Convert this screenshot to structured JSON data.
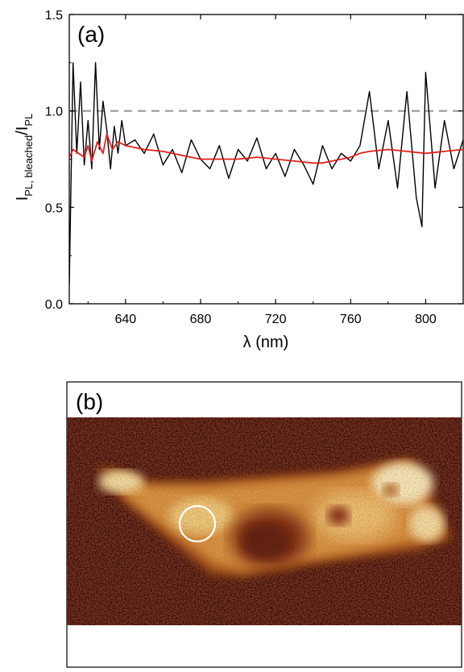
{
  "panel_a": {
    "label": "(a)",
    "chart_data": {
      "type": "line",
      "title": "",
      "xlabel": "λ (nm)",
      "ylabel_main": "I",
      "ylabel_sub1": "PL, bleached",
      "ylabel_slash": "/I",
      "ylabel_sub2": "PL",
      "xlim": [
        610,
        820
      ],
      "ylim": [
        0.0,
        1.5
      ],
      "x_ticks": [
        640,
        680,
        720,
        760,
        800
      ],
      "x_tick_labels": [
        "640",
        "680",
        "720",
        "760",
        "800"
      ],
      "y_ticks": [
        0.0,
        0.5,
        1.0,
        1.5
      ],
      "y_tick_labels": [
        "0.0",
        "0.5",
        "1.0",
        "1.5"
      ],
      "grid": false,
      "reference_line": {
        "y": 1.0,
        "style": "dashed",
        "color": "#9a9a9a"
      },
      "series": [
        {
          "color": "#000000",
          "kind": "raw",
          "x": [
            610,
            612,
            614,
            616,
            618,
            620,
            622,
            624,
            626,
            628,
            630,
            632,
            634,
            636,
            638,
            640,
            645,
            650,
            655,
            660,
            665,
            670,
            675,
            680,
            685,
            690,
            695,
            700,
            705,
            710,
            715,
            720,
            725,
            730,
            735,
            740,
            745,
            750,
            755,
            760,
            765,
            770,
            775,
            780,
            785,
            790,
            795,
            798,
            800,
            805,
            810,
            815,
            820
          ],
          "y": [
            0.1,
            1.25,
            0.78,
            1.15,
            0.72,
            0.95,
            0.7,
            1.25,
            0.8,
            1.05,
            0.9,
            0.7,
            0.92,
            0.78,
            0.95,
            0.82,
            0.85,
            0.78,
            0.88,
            0.72,
            0.8,
            0.68,
            0.85,
            0.75,
            0.7,
            0.82,
            0.65,
            0.8,
            0.74,
            0.86,
            0.7,
            0.78,
            0.66,
            0.8,
            0.72,
            0.62,
            0.82,
            0.7,
            0.78,
            0.74,
            0.82,
            1.1,
            0.7,
            0.95,
            0.6,
            1.1,
            0.55,
            0.4,
            1.2,
            0.6,
            0.95,
            0.7,
            0.85
          ]
        },
        {
          "color": "#e0201b",
          "kind": "smoothed",
          "x": [
            610,
            612,
            615,
            618,
            620,
            622,
            625,
            628,
            630,
            633,
            636,
            640,
            650,
            660,
            670,
            680,
            690,
            700,
            710,
            720,
            730,
            740,
            745,
            750,
            760,
            765,
            770,
            780,
            790,
            800,
            810,
            820
          ],
          "y": [
            0.76,
            0.8,
            0.78,
            0.76,
            0.82,
            0.74,
            0.84,
            0.78,
            0.88,
            0.8,
            0.84,
            0.82,
            0.8,
            0.79,
            0.77,
            0.75,
            0.75,
            0.75,
            0.76,
            0.75,
            0.74,
            0.73,
            0.73,
            0.74,
            0.76,
            0.78,
            0.79,
            0.8,
            0.79,
            0.78,
            0.79,
            0.8
          ]
        }
      ]
    }
  },
  "panel_b": {
    "label": "(b)",
    "image_description_icon": "photoluminescence-map",
    "colors": {
      "background": "#3a0c06",
      "body_mid": "#c06a1a",
      "body_bright": "#f6e2a6",
      "nucleus": "#7c2a10",
      "marker": "#ffffff"
    }
  }
}
